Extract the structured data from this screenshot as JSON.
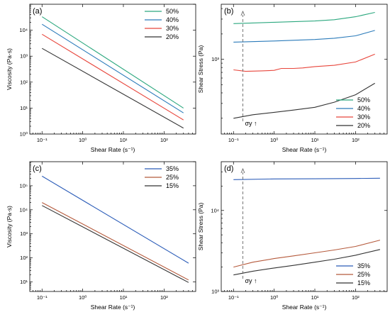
{
  "chart_data": [
    {
      "panel_label": "(a)",
      "type": "line",
      "xlabel": "Shear Rate (s⁻¹)",
      "ylabel": "Viscosity (Pa·s)",
      "x_scale": "log",
      "y_scale": "log",
      "xlim": [
        0.05,
        600
      ],
      "ylim": [
        1,
        100000
      ],
      "x_ticks": [
        "10⁻¹",
        "10⁰",
        "10¹",
        "10²"
      ],
      "y_ticks": [
        "10⁰",
        "10¹",
        "10²",
        "10³",
        "10⁴"
      ],
      "legend_position": "top-right",
      "series": [
        {
          "name": "50%",
          "color": "#2ca87f",
          "x": [
            0.1,
            300
          ],
          "y": [
            33000,
            10
          ]
        },
        {
          "name": "40%",
          "color": "#2b7bba",
          "x": [
            0.1,
            300
          ],
          "y": [
            17000,
            6.5
          ]
        },
        {
          "name": "30%",
          "color": "#e8463c",
          "x": [
            0.1,
            300
          ],
          "y": [
            7000,
            3.5
          ]
        },
        {
          "name": "20%",
          "color": "#333333",
          "x": [
            0.1,
            300
          ],
          "y": [
            2000,
            1.7
          ]
        }
      ]
    },
    {
      "panel_label": "(b)",
      "type": "line",
      "xlabel": "Shear Rate (s⁻¹)",
      "ylabel": "Shear Stress (Pa)",
      "x_scale": "log",
      "y_scale": "log",
      "xlim": [
        0.05,
        600
      ],
      "ylim": [
        130,
        4500
      ],
      "x_ticks": [
        "10⁻¹",
        "10⁰",
        "10¹",
        "10²"
      ],
      "y_ticks": [
        "10³"
      ],
      "legend_position": "bottom-right",
      "annotation": "σy ↑",
      "yield_marker_x": 0.17,
      "series": [
        {
          "name": "50%",
          "color": "#2ca87f",
          "x": [
            0.1,
            1,
            10,
            30,
            100,
            300
          ],
          "y": [
            2650,
            2750,
            2850,
            2950,
            3200,
            3600
          ]
        },
        {
          "name": "40%",
          "color": "#2b7bba",
          "x": [
            0.1,
            1,
            10,
            30,
            100,
            300
          ],
          "y": [
            1600,
            1650,
            1720,
            1780,
            1900,
            2200
          ]
        },
        {
          "name": "30%",
          "color": "#e8463c",
          "x": [
            0.1,
            0.2,
            0.5,
            1,
            1.5,
            3,
            5,
            10,
            30,
            100,
            300
          ],
          "y": [
            750,
            720,
            730,
            740,
            780,
            780,
            790,
            820,
            850,
            930,
            1150
          ]
        },
        {
          "name": "20%",
          "color": "#333333",
          "x": [
            0.1,
            0.3,
            1,
            3,
            10,
            30,
            100,
            300
          ],
          "y": [
            200,
            220,
            235,
            250,
            270,
            310,
            380,
            520
          ]
        }
      ]
    },
    {
      "panel_label": "(c)",
      "type": "line",
      "xlabel": "Shear Rate (s⁻¹)",
      "ylabel": "Viscosity (Pa·s)",
      "x_scale": "log",
      "y_scale": "log",
      "xlim": [
        0.05,
        600
      ],
      "ylim": [
        4,
        1000000
      ],
      "x_ticks": [
        "10⁻¹",
        "10⁰",
        "10¹",
        "10²"
      ],
      "y_ticks": [
        "10¹",
        "10²",
        "10³",
        "10⁴",
        "10⁵"
      ],
      "legend_position": "top-right",
      "series": [
        {
          "name": "35%",
          "color": "#2b5cb8",
          "x": [
            0.1,
            400
          ],
          "y": [
            250000,
            60
          ]
        },
        {
          "name": "25%",
          "color": "#b55a3c",
          "x": [
            0.1,
            400
          ],
          "y": [
            20000,
            12
          ]
        },
        {
          "name": "15%",
          "color": "#333333",
          "x": [
            0.1,
            400
          ],
          "y": [
            15000,
            9.5
          ]
        }
      ]
    },
    {
      "panel_label": "(d)",
      "type": "line",
      "xlabel": "Shear Rate (s⁻¹)",
      "ylabel": "Shear Stress (Pa)",
      "x_scale": "log",
      "y_scale": "log",
      "xlim": [
        0.05,
        600
      ],
      "ylim": [
        1000,
        40000
      ],
      "x_ticks": [
        "10⁻¹",
        "10⁰",
        "10¹",
        "10²"
      ],
      "y_ticks": [
        "10³",
        "10⁴"
      ],
      "legend_position": "bottom-right",
      "annotation": "σy ↑",
      "yield_marker_x": 0.17,
      "series": [
        {
          "name": "35%",
          "color": "#2b5cb8",
          "x": [
            0.1,
            1,
            10,
            100,
            400
          ],
          "y": [
            24000,
            24500,
            24600,
            24800,
            25000
          ]
        },
        {
          "name": "25%",
          "color": "#b55a3c",
          "x": [
            0.1,
            0.3,
            1,
            3,
            10,
            30,
            100,
            400
          ],
          "y": [
            2000,
            2300,
            2550,
            2750,
            3000,
            3250,
            3600,
            4300
          ]
        },
        {
          "name": "15%",
          "color": "#333333",
          "x": [
            0.1,
            0.3,
            1,
            3,
            10,
            30,
            100,
            400
          ],
          "y": [
            1600,
            1780,
            1950,
            2100,
            2300,
            2500,
            2800,
            3300
          ]
        }
      ]
    }
  ]
}
